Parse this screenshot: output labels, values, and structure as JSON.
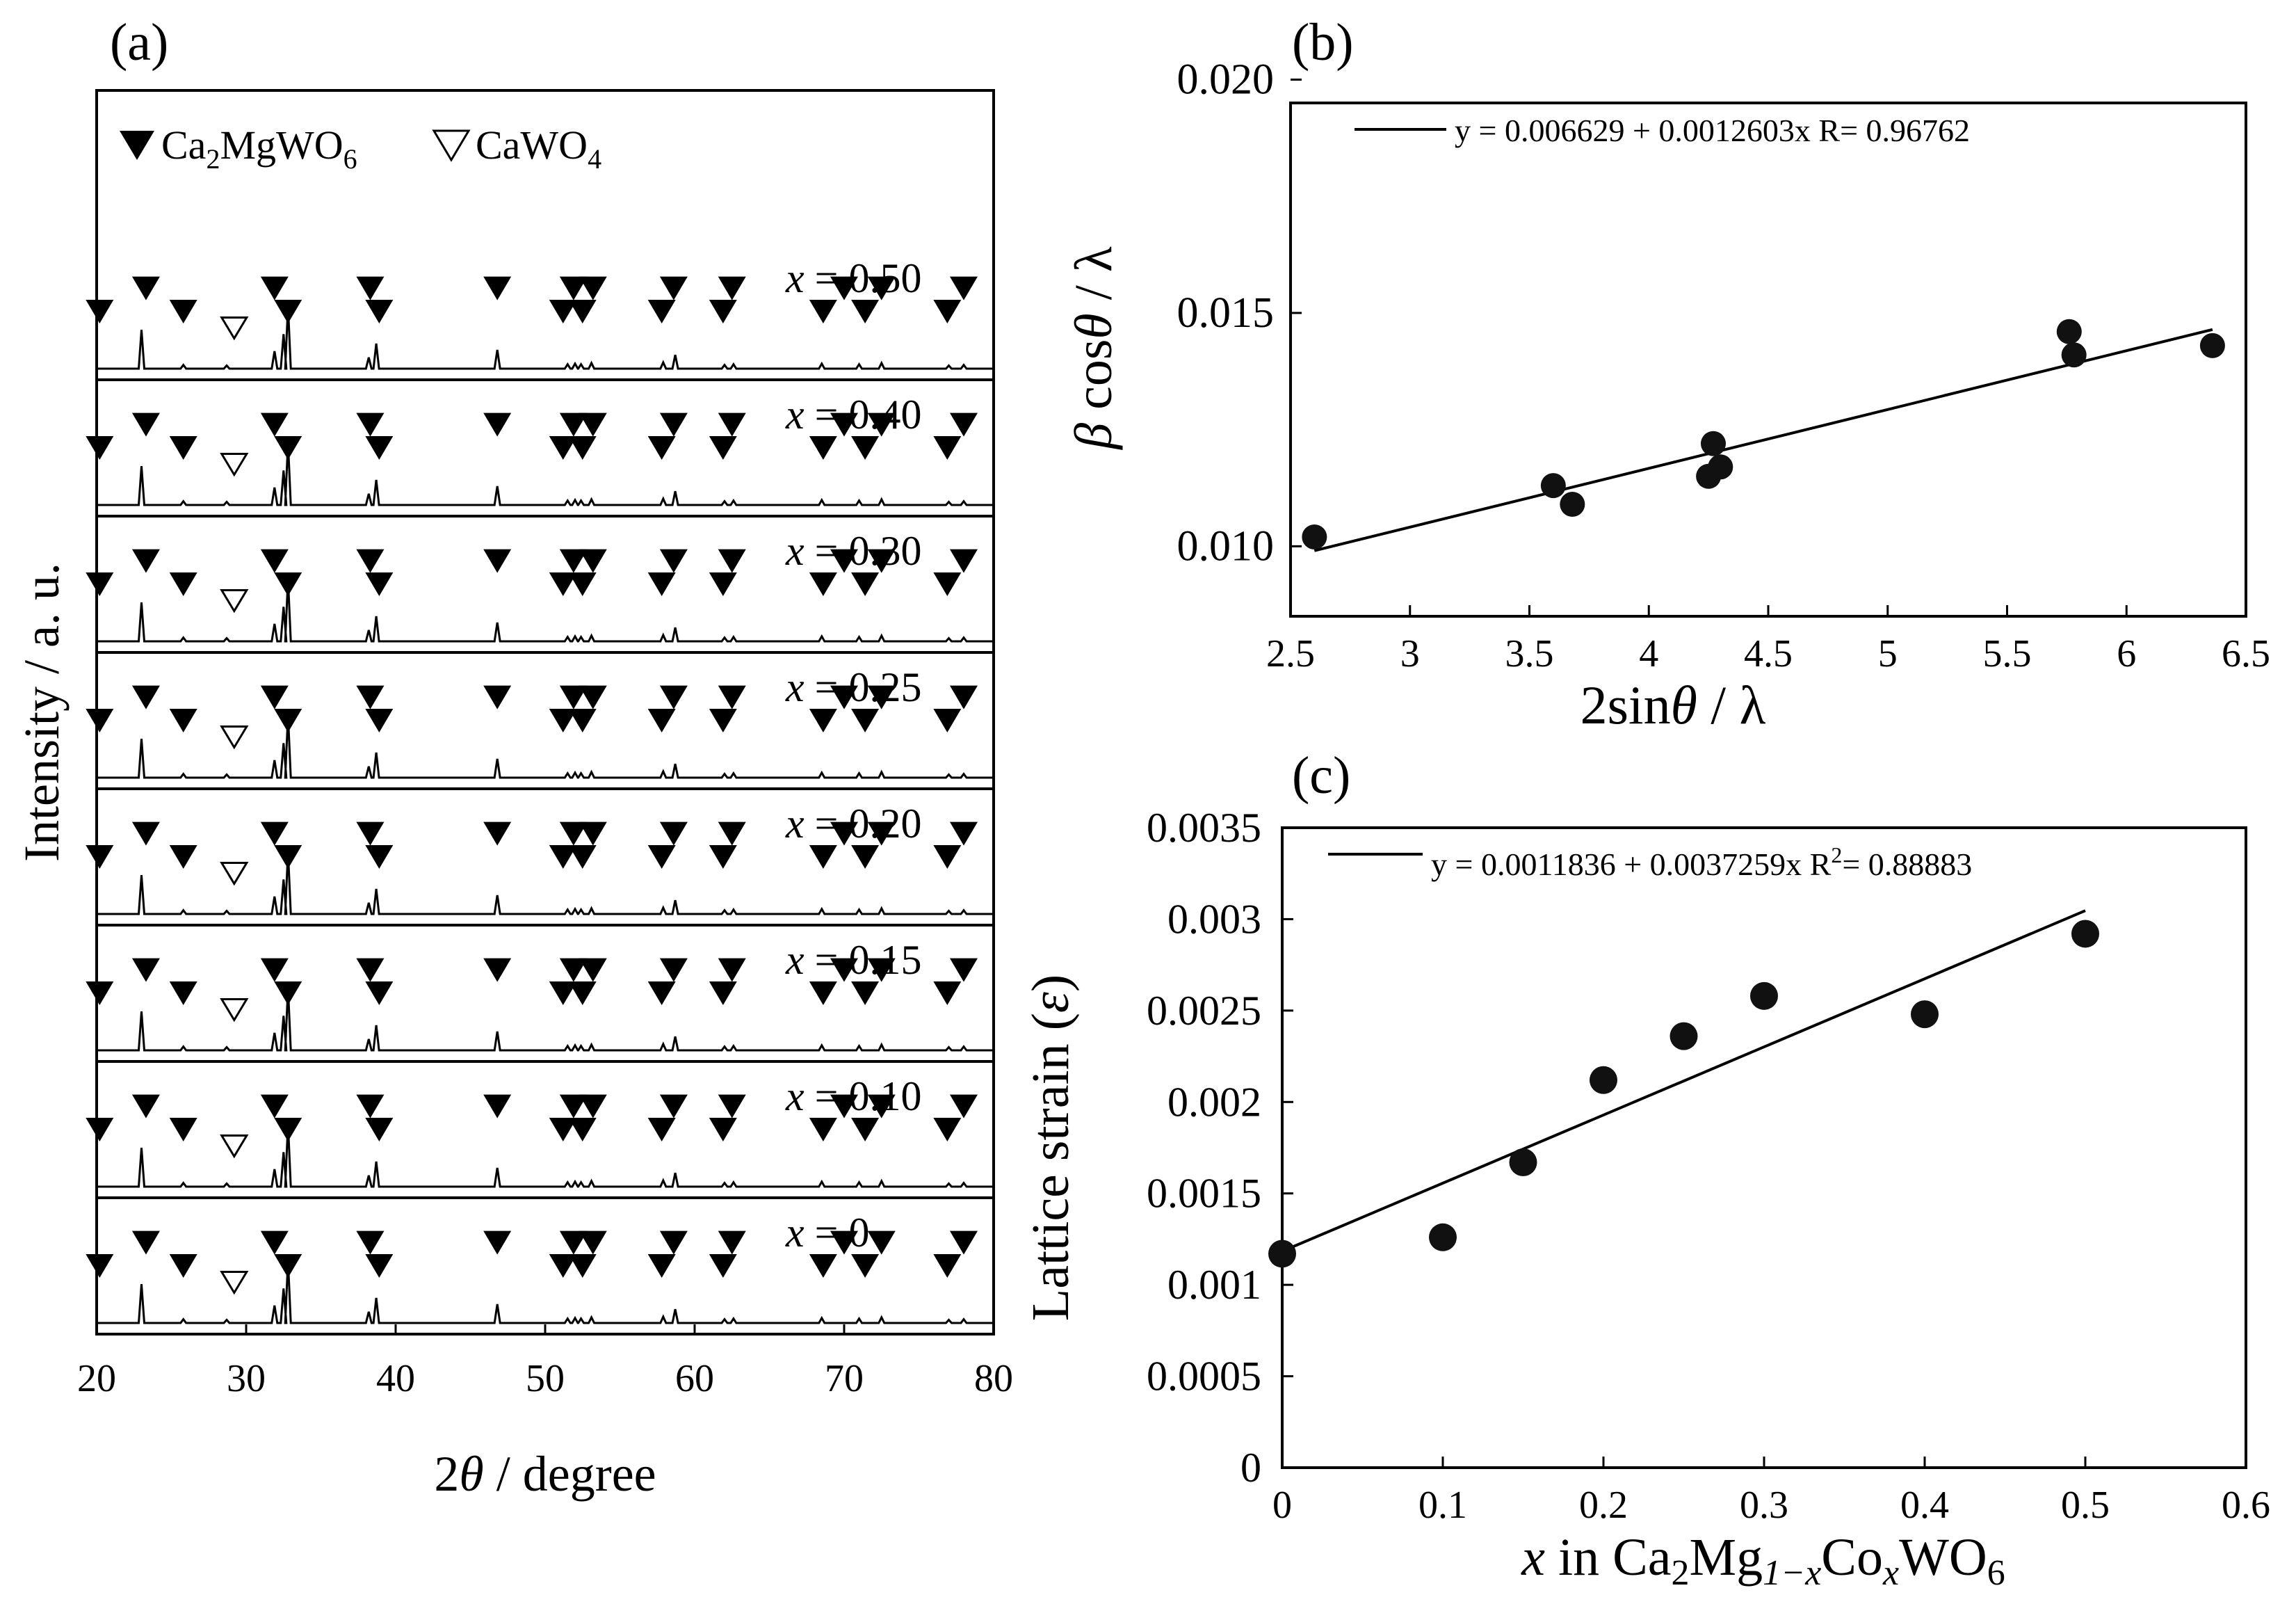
{
  "colors": {
    "ink": "#000000",
    "background": "#ffffff"
  },
  "chart_data": [
    {
      "panel": "(a)",
      "type": "line",
      "title": "",
      "xlabel_prefix": "2",
      "xlabel_theta": "θ",
      "xlabel_suffix": " / degree",
      "ylabel": "Intensity / a. u.",
      "xlim": [
        20,
        80
      ],
      "xticks": [
        "20",
        "30",
        "40",
        "50",
        "60",
        "70",
        "80"
      ],
      "legend": {
        "placement": "top-left",
        "filled": {
          "text": "Ca",
          "sub1": "2",
          "mid": "MgWO",
          "sub2": "6"
        },
        "open": {
          "text": "CaWO",
          "sub": "4"
        }
      },
      "peaks_2theta": [
        23.0,
        25.8,
        28.7,
        31.9,
        32.5,
        32.8,
        38.2,
        38.7,
        46.8,
        51.5,
        52.0,
        52.4,
        53.1,
        57.9,
        58.7,
        62.0,
        62.6,
        68.5,
        71.0,
        72.5,
        77.0,
        78.0
      ],
      "peak_heights": [
        0.62,
        0.06,
        0.05,
        0.28,
        0.55,
        1.0,
        0.18,
        0.4,
        0.3,
        0.07,
        0.08,
        0.07,
        0.09,
        0.1,
        0.22,
        0.06,
        0.07,
        0.08,
        0.07,
        0.09,
        0.05,
        0.06
      ],
      "series": [
        {
          "name": "x = 0",
          "var": "x",
          "eq": " = 0",
          "filled_markers_2theta": [
            20.2,
            23.3,
            25.8,
            31.9,
            32.8,
            38.3,
            38.9,
            46.8,
            51.2,
            51.9,
            52.5,
            53.2,
            57.8,
            58.6,
            61.9,
            62.5,
            68.6,
            70.0,
            71.4,
            72.5,
            76.9,
            78.0
          ],
          "open_markers_2theta": [
            29.2
          ]
        },
        {
          "name": "x = 0.10",
          "var": "x",
          "eq": " = 0.10",
          "filled_markers_2theta": [
            20.2,
            23.3,
            25.8,
            31.9,
            32.8,
            38.3,
            38.9,
            46.8,
            51.2,
            51.9,
            52.5,
            53.2,
            57.8,
            58.6,
            61.9,
            62.5,
            68.6,
            70.0,
            71.4,
            72.5,
            76.9,
            78.0
          ],
          "open_markers_2theta": [
            29.2
          ]
        },
        {
          "name": "x = 0.15",
          "var": "x",
          "eq": " = 0.15",
          "filled_markers_2theta": [
            20.2,
            23.3,
            25.8,
            31.9,
            32.8,
            38.3,
            38.9,
            46.8,
            51.2,
            51.9,
            52.5,
            53.2,
            57.8,
            58.6,
            61.9,
            62.5,
            68.6,
            70.0,
            71.4,
            72.5,
            76.9,
            78.0
          ],
          "open_markers_2theta": [
            29.2
          ]
        },
        {
          "name": "x = 0.20",
          "var": "x",
          "eq": " = 0.20",
          "filled_markers_2theta": [
            20.2,
            23.3,
            25.8,
            31.9,
            32.8,
            38.3,
            38.9,
            46.8,
            51.2,
            51.9,
            52.5,
            53.2,
            57.8,
            58.6,
            61.9,
            62.5,
            68.6,
            70.0,
            71.4,
            72.5,
            76.9,
            78.0
          ],
          "open_markers_2theta": [
            29.2
          ]
        },
        {
          "name": "x = 0.25",
          "var": "x",
          "eq": " = 0.25",
          "filled_markers_2theta": [
            20.2,
            23.3,
            25.8,
            31.9,
            32.8,
            38.3,
            38.9,
            46.8,
            51.2,
            51.9,
            52.5,
            53.2,
            57.8,
            58.6,
            61.9,
            62.5,
            68.6,
            70.0,
            71.4,
            72.5,
            76.9,
            78.0
          ],
          "open_markers_2theta": [
            29.2
          ]
        },
        {
          "name": "x = 0.30",
          "var": "x",
          "eq": " = 0.30",
          "filled_markers_2theta": [
            20.2,
            23.3,
            25.8,
            31.9,
            32.8,
            38.3,
            38.9,
            46.8,
            51.2,
            51.9,
            52.5,
            53.2,
            57.8,
            58.6,
            61.9,
            62.5,
            68.6,
            70.0,
            71.4,
            72.5,
            76.9,
            78.0
          ],
          "open_markers_2theta": [
            29.2
          ]
        },
        {
          "name": "x = 0.40",
          "var": "x",
          "eq": " = 0.40",
          "filled_markers_2theta": [
            20.2,
            23.3,
            25.8,
            31.9,
            32.8,
            38.3,
            38.9,
            46.8,
            51.2,
            51.9,
            52.5,
            53.2,
            57.8,
            58.6,
            61.9,
            62.5,
            68.6,
            70.0,
            71.4,
            72.5,
            76.9,
            78.0
          ],
          "open_markers_2theta": [
            29.2
          ]
        },
        {
          "name": "x = 0.50",
          "var": "x",
          "eq": " = 0.50",
          "filled_markers_2theta": [
            20.2,
            23.3,
            25.8,
            31.9,
            32.8,
            38.3,
            38.9,
            46.8,
            51.2,
            51.9,
            52.5,
            53.2,
            57.8,
            58.6,
            61.9,
            62.5,
            68.6,
            70.0,
            71.4,
            72.5,
            76.9,
            78.0
          ],
          "open_markers_2theta": [
            29.2
          ]
        }
      ]
    },
    {
      "panel": "(b)",
      "type": "scatter",
      "title": "",
      "xlabel_prefix": "2sin",
      "xlabel_theta": "θ",
      "xlabel_suffix": " / λ",
      "ylabel_beta": "β",
      "ylabel_mid": " cos",
      "ylabel_theta": "θ",
      "ylabel_suffix": " / λ",
      "xlim": [
        2.5,
        6.5
      ],
      "ylim": [
        0.0085,
        0.0195
      ],
      "xticks": [
        "2.5",
        "3",
        "3.5",
        "4",
        "4.5",
        "5",
        "5.5",
        "6",
        "6.5"
      ],
      "yticks": [
        "0.010",
        "0.015",
        "0.020"
      ],
      "x": [
        2.6,
        3.6,
        3.68,
        4.25,
        4.27,
        4.3,
        5.76,
        5.78,
        6.36
      ],
      "y": [
        0.0102,
        0.0113,
        0.0109,
        0.0115,
        0.0122,
        0.0117,
        0.0146,
        0.0141,
        0.0143
      ],
      "fit": {
        "intercept": 0.006629,
        "slope": 0.0012603,
        "x_range": [
          2.6,
          6.36
        ],
        "label": "y = 0.006629 + 0.0012603x   R= 0.96762"
      }
    },
    {
      "panel": "(c)",
      "type": "scatter",
      "title": "",
      "xlabel_var": "x",
      "xlabel_mid": " in Ca",
      "xlabel_sub1": "2",
      "xlabel_mg": "Mg",
      "xlabel_sub2": "1−x",
      "xlabel_co": "Co",
      "xlabel_sub3": "x",
      "xlabel_wo": "WO",
      "xlabel_sub4": "6",
      "ylabel_text": "Lattice strain (",
      "ylabel_eps": "ε",
      "ylabel_close": ")",
      "xlim": [
        0,
        0.6
      ],
      "ylim": [
        0,
        0.0035
      ],
      "xticks": [
        "0",
        "0.1",
        "0.2",
        "0.3",
        "0.4",
        "0.5",
        "0.6"
      ],
      "yticks": [
        "0",
        "0.0005",
        "0.001",
        "0.0015",
        "0.002",
        "0.0025",
        "0.003",
        "0.0035"
      ],
      "x": [
        0,
        0.1,
        0.15,
        0.2,
        0.25,
        0.3,
        0.4,
        0.5
      ],
      "y": [
        0.00117,
        0.00126,
        0.00167,
        0.00212,
        0.00236,
        0.00258,
        0.00248,
        0.00292
      ],
      "fit": {
        "intercept": 0.0011836,
        "slope": 0.0037259,
        "x_range": [
          0,
          0.5
        ],
        "label_main": "y = 0.0011836 + 0.0037259x   R",
        "label_sup": "2",
        "label_tail": "= 0.88883"
      }
    }
  ]
}
